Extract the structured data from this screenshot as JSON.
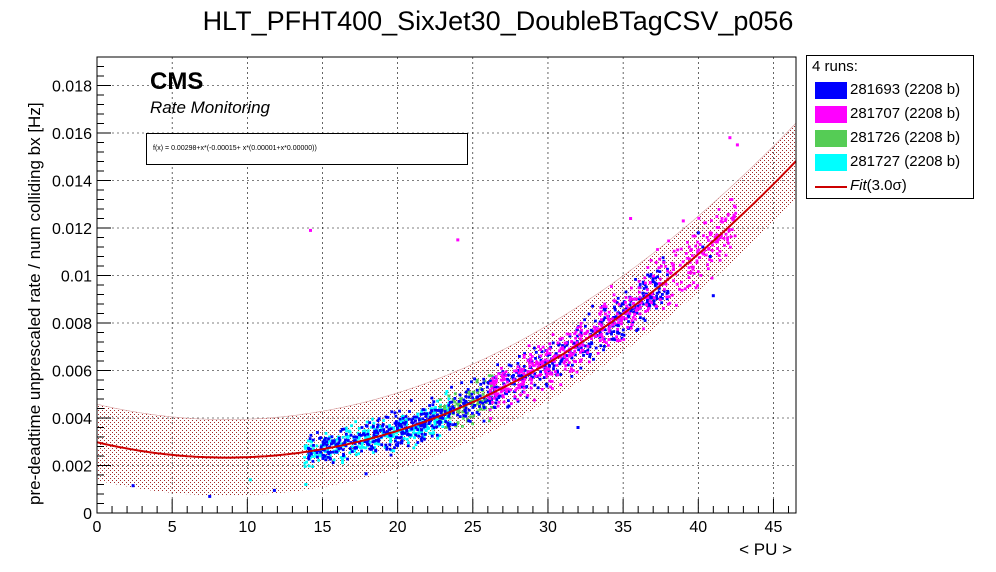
{
  "chart_data": {
    "type": "scatter",
    "title": "HLT_PFHT400_SixJet30_DoubleBTagCSV_p056",
    "xlabel": "< PU >",
    "ylabel": "pre-deadtime unprescaled rate / num colliding bx [Hz]",
    "xlim": [
      0,
      46.5
    ],
    "ylim": [
      0,
      0.0192
    ],
    "grid": true,
    "x_ticks": [
      0,
      5,
      10,
      15,
      20,
      25,
      30,
      35,
      40,
      45
    ],
    "y_ticks": [
      0,
      0.002,
      0.004,
      0.006,
      0.008,
      0.01,
      0.012,
      0.014,
      0.016,
      0.018
    ],
    "x_tick_labels": [
      "0",
      "5",
      "10",
      "15",
      "20",
      "25",
      "30",
      "35",
      "40",
      "45"
    ],
    "y_tick_labels": [
      "0",
      "0.002",
      "0.004",
      "0.006",
      "0.008",
      "0.01",
      "0.012",
      "0.014",
      "0.016",
      "0.018"
    ],
    "series": [
      {
        "name": "281693 (2208 b)",
        "color": "#0000ff",
        "pu_range": [
          14.0,
          38.0
        ],
        "extra_points": [
          [
            2.4,
            0.00115
          ],
          [
            7.5,
            0.0007
          ],
          [
            11.8,
            0.00095
          ],
          [
            17.9,
            0.00165
          ],
          [
            18.0,
            0.0029
          ],
          [
            27.4,
            0.0045
          ],
          [
            32.0,
            0.0036
          ],
          [
            40.3,
            0.0112
          ],
          [
            40.8,
            0.0108
          ],
          [
            41.0,
            0.00915
          ],
          [
            40.0,
            0.0118
          ]
        ]
      },
      {
        "name": "281707 (2208 b)",
        "color": "#ff00ff",
        "pu_range": [
          26.0,
          42.5
        ],
        "extra_points": [
          [
            14.2,
            0.0119
          ],
          [
            24.0,
            0.0115
          ],
          [
            35.5,
            0.0124
          ],
          [
            39.0,
            0.0123
          ],
          [
            42.1,
            0.0158
          ],
          [
            42.6,
            0.0155
          ],
          [
            40.8,
            0.0118
          ]
        ]
      },
      {
        "name": "281726 (2208 b)",
        "color": "#55cc55",
        "pu_range": [
          22.8,
          26.3
        ],
        "extra_points": []
      },
      {
        "name": "281727 (2208 b)",
        "color": "#00ffff",
        "pu_range": [
          13.8,
          23.5
        ],
        "extra_points": [
          [
            13.9,
            0.0012
          ],
          [
            10.2,
            0.0014
          ]
        ]
      }
    ],
    "fit": {
      "name": "Fit(3.0σ)",
      "color": "#cc0000",
      "function": "f(x) = 0.00298+x*(-0.00015+ x*(0.00001+x*0.00000))",
      "p0": 0.00298,
      "p1": -0.00015,
      "p2": 8.7e-06,
      "band": 0.0016
    }
  },
  "legend": {
    "header": "4 runs:",
    "entries": [
      "281693 (2208 b)",
      "281707 (2208 b)",
      "281726 (2208 b)",
      "281727 (2208 b)"
    ],
    "fit_prefix": "Fit",
    "fit_suffix": "(3.0σ)"
  },
  "annotations": {
    "cms": "CMS",
    "subtitle": "Rate Monitoring",
    "fit_box": "f(x) = 0.00298+x*(-0.00015+ x*(0.00001+x*0.00000))"
  }
}
